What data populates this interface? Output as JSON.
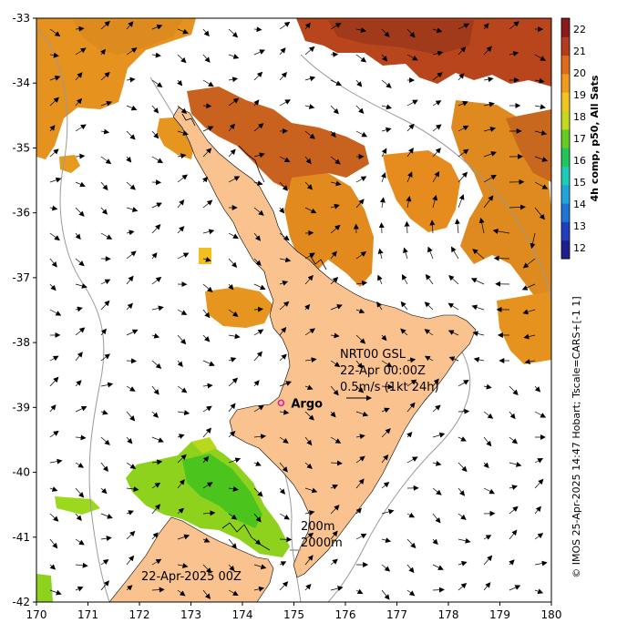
{
  "map": {
    "x_ticks": [
      "170",
      "171",
      "172",
      "173",
      "174",
      "175",
      "176",
      "177",
      "178",
      "179",
      "180"
    ],
    "y_ticks": [
      "-33",
      "-34",
      "-35",
      "-36",
      "-37",
      "-38",
      "-39",
      "-40",
      "-41",
      "-42"
    ],
    "lon_range": [
      170,
      180
    ],
    "lat_range": [
      -42,
      -33
    ],
    "land_color": "#f9c28e",
    "ocean_color": "#ffffff"
  },
  "colorbar": {
    "ticks": [
      "22",
      "21",
      "20",
      "19",
      "18",
      "17",
      "16",
      "15",
      "14",
      "13",
      "12"
    ],
    "range": [
      11.5,
      22.5
    ],
    "label": "4h comp, p50, All Sats",
    "colors": [
      "#1f1e8e",
      "#1f3fbf",
      "#1f75d6",
      "#1ea6dc",
      "#1ecbb9",
      "#22c55a",
      "#66cc22",
      "#c3d81e",
      "#f2c41e",
      "#f29a1e",
      "#e06a1e",
      "#b53a1e",
      "#8b1a1a"
    ]
  },
  "annotation": {
    "line1": "NRT00 GSL",
    "line2": "22-Apr 00:00Z",
    "line3": "0.5m/s (1kt 24h)"
  },
  "argo": {
    "label": "Argo",
    "lon": 174.75,
    "lat": -38.93,
    "marker_color": "#e0199f"
  },
  "contours": {
    "label_200": "200m",
    "label_2000": "2000m"
  },
  "date_label": "22-Apr-2025 00Z",
  "credit": "© IMOS 25-Apr-2025 14:47 Hobart; Tscale=CARS+[-1 1]"
}
